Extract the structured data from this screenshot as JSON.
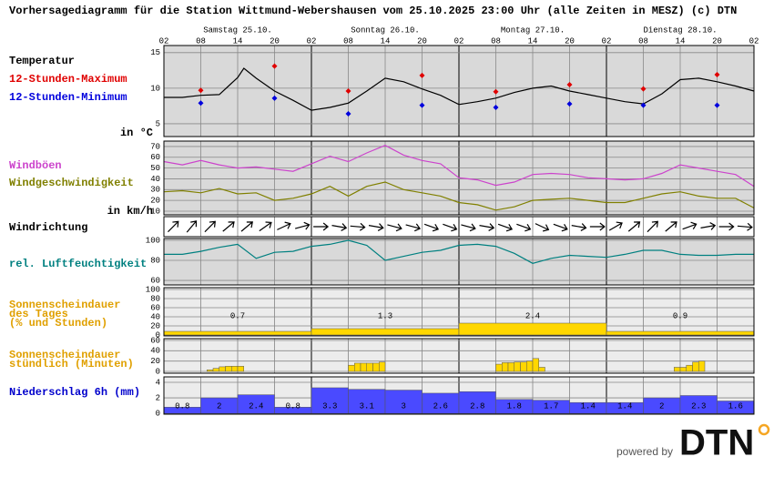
{
  "title": "Vorhersagediagramm für die Station Wittmund-Webershausen  vom 25.10.2025 23:00 Uhr (alle Zeiten in MESZ)   (c) DTN",
  "days": [
    "Samstag 25.10.",
    "Sonntag 26.10.",
    "Montag 27.10.",
    "Dienstag 28.10."
  ],
  "day_x": [
    12,
    36,
    60,
    84
  ],
  "xlim": [
    0,
    96
  ],
  "xticks": [
    {
      "value": 0,
      "label": "02"
    },
    {
      "value": 6,
      "label": "08"
    },
    {
      "value": 12,
      "label": "14"
    },
    {
      "value": 18,
      "label": "20"
    },
    {
      "value": 24,
      "label": "02"
    },
    {
      "value": 30,
      "label": "08"
    },
    {
      "value": 36,
      "label": "14"
    },
    {
      "value": 42,
      "label": "20"
    },
    {
      "value": 48,
      "label": "02"
    },
    {
      "value": 54,
      "label": "08"
    },
    {
      "value": 60,
      "label": "14"
    },
    {
      "value": 66,
      "label": "20"
    },
    {
      "value": 72,
      "label": "02"
    },
    {
      "value": 78,
      "label": "08"
    },
    {
      "value": 84,
      "label": "14"
    },
    {
      "value": 90,
      "label": "20"
    },
    {
      "value": 96,
      "label": "02"
    }
  ],
  "day_boundaries": [
    0,
    24,
    48,
    72,
    96
  ],
  "chart_data": [
    {
      "type": "line",
      "ylabel": "in °C",
      "ylim": [
        3.2,
        16
      ],
      "yticks": [
        5,
        10,
        15
      ],
      "background": "#d9d9d9",
      "series": [
        {
          "name": "Temperatur",
          "color": "#000000",
          "style": "line",
          "x": [
            0,
            3,
            6,
            9,
            12,
            13,
            15,
            18,
            21,
            24,
            27,
            30,
            33,
            36,
            39,
            42,
            45,
            48,
            51,
            54,
            57,
            60,
            63,
            66,
            69,
            72,
            75,
            78,
            81,
            84,
            87,
            90,
            93,
            96
          ],
          "values": [
            8.7,
            8.7,
            9.0,
            9.1,
            11.5,
            12.8,
            11.4,
            9.6,
            8.3,
            6.9,
            7.3,
            7.9,
            9.6,
            11.4,
            10.9,
            9.9,
            9.0,
            7.7,
            8.1,
            8.6,
            9.4,
            10.0,
            10.3,
            9.6,
            9.1,
            8.6,
            8.1,
            7.8,
            9.2,
            11.2,
            11.4,
            10.9,
            10.3,
            9.6
          ]
        },
        {
          "name": "12-Stunden-Maximum",
          "color": "#e00000",
          "style": "marker",
          "x": [
            6,
            18,
            30,
            42,
            54,
            66,
            78,
            90
          ],
          "values": [
            9.7,
            13.1,
            9.6,
            11.8,
            9.5,
            10.5,
            9.9,
            11.9
          ]
        },
        {
          "name": "12-Stunden-Minimum",
          "color": "#0000dd",
          "style": "marker",
          "x": [
            6,
            18,
            30,
            42,
            54,
            66,
            78,
            90
          ],
          "values": [
            7.9,
            8.6,
            6.4,
            7.6,
            7.3,
            7.8,
            7.6,
            7.6
          ]
        }
      ]
    },
    {
      "type": "line",
      "ylabel": "in km/h",
      "ylim": [
        6.6,
        75
      ],
      "yticks": [
        10,
        20,
        30,
        40,
        50,
        60,
        70
      ],
      "background": "#d9d9d9",
      "x": [
        0,
        3,
        6,
        9,
        12,
        15,
        18,
        21,
        24,
        27,
        30,
        33,
        36,
        39,
        42,
        45,
        48,
        51,
        54,
        57,
        60,
        63,
        66,
        69,
        72,
        75,
        78,
        81,
        84,
        87,
        90,
        93,
        96
      ],
      "series": [
        {
          "name": "Windböen",
          "color": "#cc44cc",
          "style": "line",
          "values": [
            56,
            53,
            57,
            53,
            50,
            51,
            49,
            47,
            54,
            61,
            56,
            64,
            71,
            62,
            57,
            54,
            41,
            39,
            34,
            37,
            44,
            45,
            44,
            41,
            40,
            39,
            40,
            45,
            53,
            50,
            47,
            44,
            33
          ]
        },
        {
          "name": "Windgeschwindigkeit",
          "color": "#808000",
          "style": "line",
          "values": [
            28,
            29,
            27,
            31,
            26,
            27,
            20,
            22,
            26,
            33,
            24,
            33,
            37,
            30,
            27,
            24,
            18,
            16,
            11,
            14,
            20,
            21,
            22,
            20,
            18,
            18,
            22,
            26,
            28,
            24,
            22,
            22,
            13
          ]
        }
      ]
    },
    {
      "type": "arrows",
      "name": "Windrichtung",
      "background": "#ffffff",
      "x": [
        1.5,
        4.5,
        7.5,
        10.5,
        13.5,
        16.5,
        19.5,
        22.5,
        25.5,
        28.5,
        31.5,
        34.5,
        37.5,
        40.5,
        43.5,
        46.5,
        49.5,
        52.5,
        55.5,
        58.5,
        61.5,
        64.5,
        67.5,
        70.5,
        73.5,
        76.5,
        79.5,
        82.5,
        85.5,
        88.5,
        91.5,
        94.5
      ],
      "values": [
        225,
        220,
        225,
        230,
        230,
        235,
        245,
        255,
        270,
        280,
        275,
        280,
        285,
        285,
        290,
        290,
        285,
        280,
        290,
        290,
        295,
        290,
        280,
        270,
        240,
        230,
        225,
        230,
        250,
        260,
        270,
        275
      ]
    },
    {
      "type": "line",
      "ylim": [
        55.5,
        101.8
      ],
      "yticks": [
        60,
        80,
        100
      ],
      "background": "#d9d9d9",
      "x": [
        0,
        3,
        6,
        9,
        12,
        15,
        18,
        21,
        24,
        27,
        30,
        33,
        36,
        39,
        42,
        45,
        48,
        51,
        54,
        57,
        60,
        63,
        66,
        69,
        72,
        75,
        78,
        81,
        84,
        87,
        90,
        93,
        96
      ],
      "series": [
        {
          "name": "rel. Luftfeuchtigkeit",
          "color": "#008080",
          "style": "line",
          "values": [
            86,
            86,
            89,
            93,
            96,
            82,
            88,
            89,
            94,
            96,
            100,
            95,
            80,
            84,
            88,
            90,
            95,
            96,
            94,
            87,
            77,
            82,
            85,
            84,
            83,
            86,
            90,
            90,
            86,
            85,
            85,
            86,
            86
          ]
        }
      ]
    },
    {
      "type": "bar",
      "label_lines": [
        "Sonnenscheindauer",
        "des Tages",
        "(% und Stunden)"
      ],
      "label_color": "#e0a000",
      "ylim": [
        -2,
        104
      ],
      "yticks": [
        0,
        20,
        40,
        60,
        80,
        100
      ],
      "background": "#ececec",
      "color": "#ffd700",
      "x": [
        0,
        24,
        48,
        72
      ],
      "values": [
        8,
        14,
        26,
        8
      ],
      "hours": [
        0.7,
        1.3,
        2.4,
        0.9
      ]
    },
    {
      "type": "bar",
      "label_lines": [
        "Sonnenscheindauer",
        "stündlich (Minuten)"
      ],
      "label_color": "#e0a000",
      "ylim": [
        -3.5,
        63.5
      ],
      "yticks": [
        0,
        20,
        40,
        60
      ],
      "background": "#ececec",
      "color": "#ffd700",
      "x": [
        7,
        8,
        9,
        10,
        11,
        12,
        30,
        31,
        32,
        33,
        34,
        35,
        54,
        55,
        56,
        57,
        58,
        59,
        60,
        61,
        83,
        84,
        85,
        86,
        87
      ],
      "values": [
        3,
        6,
        9,
        10,
        10,
        10,
        12,
        16,
        16,
        16,
        16,
        18,
        14,
        17,
        17,
        18,
        18,
        20,
        25,
        8,
        8,
        8,
        12,
        18,
        20
      ]
    },
    {
      "type": "bar",
      "label_lines": [
        "Niederschlag 6h (mm)"
      ],
      "label_color": "#0000cc",
      "ylim": [
        -0.1,
        4.7
      ],
      "yticks": [
        0,
        2,
        4
      ],
      "background": "#ececec",
      "color": "#4a4aff",
      "print_values": true,
      "x": [
        0,
        6,
        12,
        18,
        24,
        30,
        36,
        42,
        48,
        54,
        60,
        66,
        72,
        78,
        84,
        90
      ],
      "values": [
        0.8,
        2,
        2.4,
        0.8,
        3.3,
        3.1,
        3,
        2.6,
        2.8,
        1.8,
        1.7,
        1.4,
        1.4,
        2,
        2.3,
        1.6
      ]
    }
  ],
  "footer": {
    "powered_by": "powered by",
    "logo": "DTN"
  }
}
